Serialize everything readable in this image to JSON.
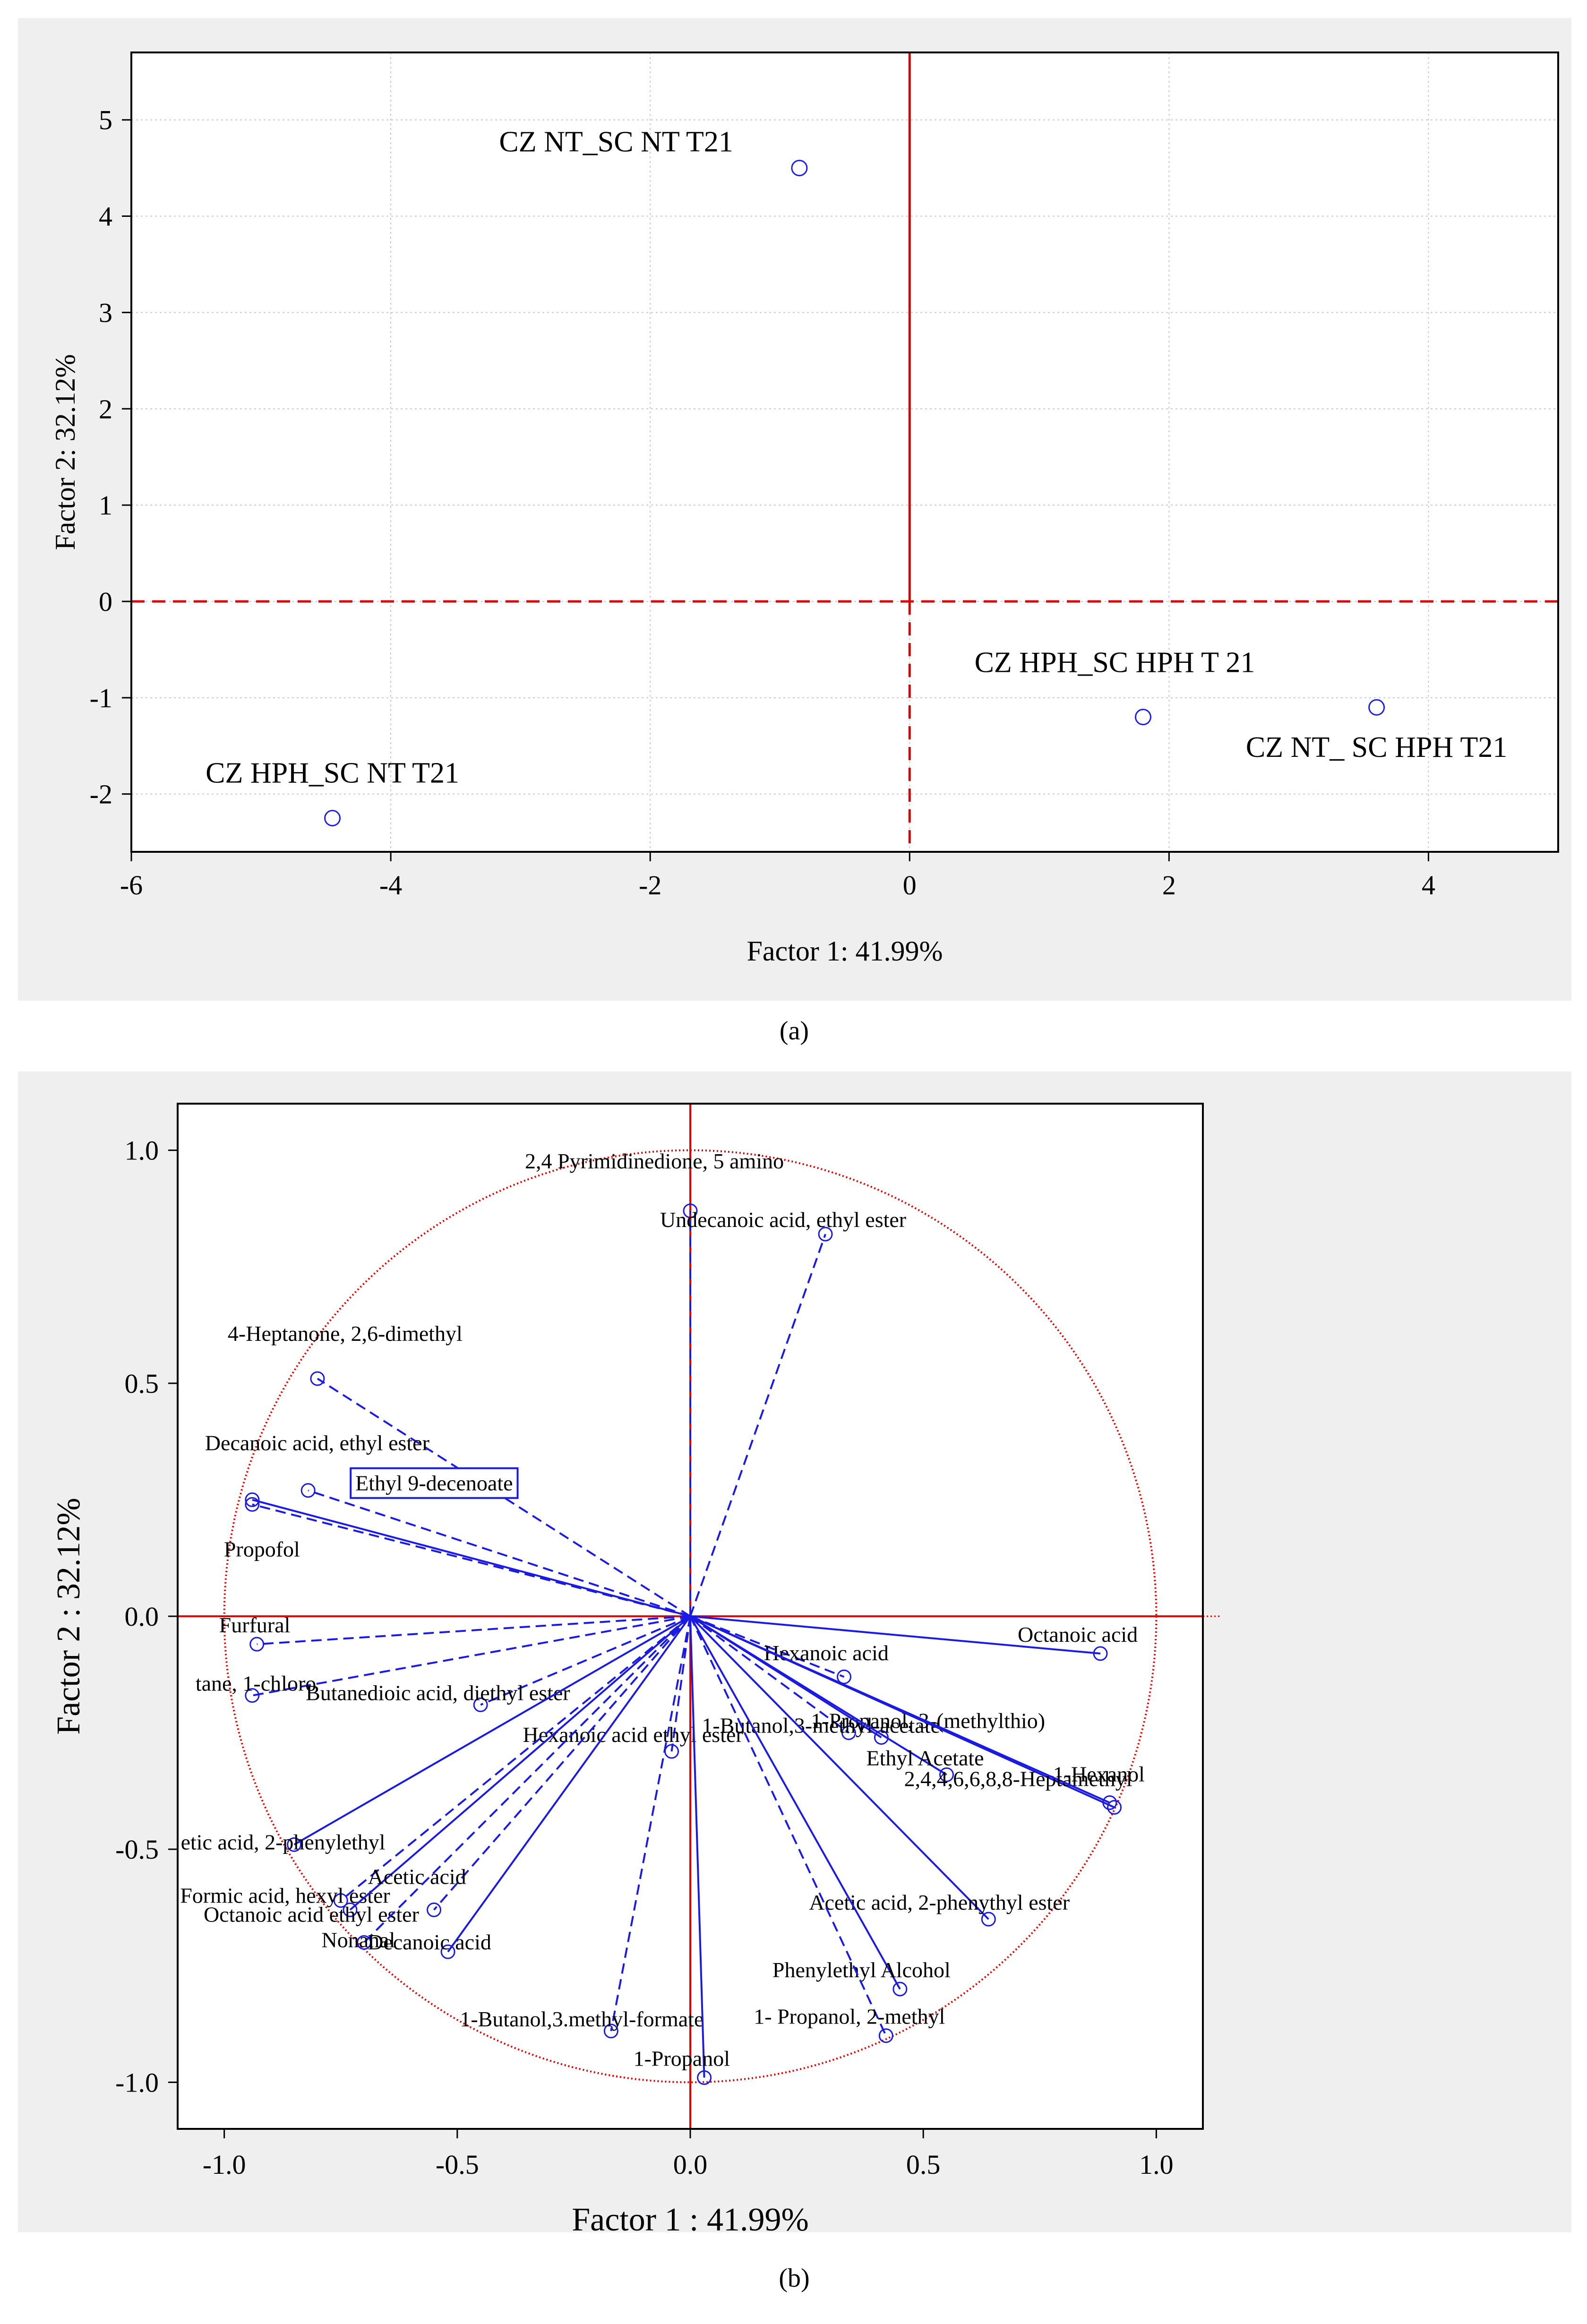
{
  "chart_data": [
    {
      "type": "scatter",
      "caption": "(a)",
      "xlabel": "Factor 1: 41.99%",
      "ylabel": "Factor 2: 32.12%",
      "xlim": [
        -6,
        5
      ],
      "ylim": [
        -2.6,
        5.7
      ],
      "xticks": [
        -6,
        -4,
        -2,
        0,
        2,
        4
      ],
      "yticks": [
        -2,
        -1,
        0,
        1,
        2,
        3,
        4,
        5
      ],
      "xtick_labels": [
        "-6",
        "-4",
        "-2",
        "0",
        "2",
        "4"
      ],
      "ytick_labels": [
        "-2",
        "-1",
        "0",
        "1",
        "2",
        "3",
        "4",
        "5"
      ],
      "grid": true,
      "points": [
        {
          "label": "CZ NT_SC NT T21",
          "x": -0.85,
          "y": 4.5
        },
        {
          "label": "CZ HPH_SC HPH T 21",
          "x": 1.8,
          "y": -1.2
        },
        {
          "label": "CZ NT_ SC HPH T21",
          "x": 3.6,
          "y": -1.1
        },
        {
          "label": "CZ HPH_SC NT T21",
          "x": -4.45,
          "y": -2.25
        }
      ]
    },
    {
      "type": "scatter",
      "caption": "(b)",
      "xlabel": "Factor 1 : 41.99%",
      "ylabel": "Factor 2 : 32.12%",
      "xlim": [
        -1.1,
        1.1
      ],
      "ylim": [
        -1.1,
        1.1
      ],
      "xticks": [
        -1.0,
        -0.5,
        0.0,
        0.5,
        1.0
      ],
      "yticks": [
        -1.0,
        -0.5,
        0.0,
        0.5,
        1.0
      ],
      "xtick_labels": [
        "-1.0",
        "-0.5",
        "0.0",
        "0.5",
        "1.0"
      ],
      "ytick_labels": [
        "-1.0",
        "-0.5",
        "0.0",
        "0.5",
        "1.0"
      ],
      "circle_radius": 1.0,
      "vectors": [
        {
          "label": "2,4 Pyrimidinedione, 5 amino",
          "x": 0.0,
          "y": 0.87,
          "dashed": true
        },
        {
          "label": "Undecanoic acid, ethyl ester",
          "x": 0.29,
          "y": 0.82,
          "dashed": true
        },
        {
          "label": "4-Heptanone, 2,6-dimethyl",
          "x": -0.8,
          "y": 0.51,
          "dashed": true
        },
        {
          "label": "Decanoic acid, ethyl ester",
          "x": -0.94,
          "y": 0.25,
          "dashed": false
        },
        {
          "label": "Ethyl 9-decenoate",
          "x": -0.82,
          "y": 0.27,
          "dashed": true
        },
        {
          "label": "Propofol",
          "x": -0.94,
          "y": 0.24,
          "dashed": true
        },
        {
          "label": "Octanoic acid",
          "x": 0.88,
          "y": -0.08,
          "dashed": false
        },
        {
          "label": "Furfural",
          "x": -0.93,
          "y": -0.06,
          "dashed": true
        },
        {
          "label": "Hexanoic acid",
          "x": 0.33,
          "y": -0.13,
          "dashed": true
        },
        {
          "label": "tane, 1-chloro",
          "x": -0.94,
          "y": -0.17,
          "dashed": true
        },
        {
          "label": "Butanedioic acid, diethyl ester",
          "x": -0.45,
          "y": -0.19,
          "dashed": true
        },
        {
          "label": "1-Propanol, 3-(methylthio)",
          "x": 0.34,
          "y": -0.25,
          "dashed": true
        },
        {
          "label": "1-Butanol,3-methyl-acetate",
          "x": 0.41,
          "y": -0.26,
          "dashed": false
        },
        {
          "label": "Hexanoic acid ethyl ester",
          "x": -0.04,
          "y": -0.29,
          "dashed": true
        },
        {
          "label": "Ethyl Acetate",
          "x": 0.55,
          "y": -0.34,
          "dashed": false
        },
        {
          "label": "2,4,4,6,6,8,8-Heptamethyl",
          "x": 0.91,
          "y": -0.41,
          "dashed": false
        },
        {
          "label": "1-Hexanol",
          "x": 0.9,
          "y": -0.4,
          "dashed": false
        },
        {
          "label": "etic acid, 2-phenylethyl",
          "x": -0.85,
          "y": -0.49,
          "dashed": false
        },
        {
          "label": "Formic acid, hexyl ester",
          "x": -0.75,
          "y": -0.61,
          "dashed": true
        },
        {
          "label": "Octanoic acid ethyl ester",
          "x": -0.73,
          "y": -0.63,
          "dashed": false
        },
        {
          "label": "Acetic acid",
          "x": -0.55,
          "y": -0.63,
          "dashed": true
        },
        {
          "label": "Nonanal",
          "x": -0.7,
          "y": -0.7,
          "dashed": true
        },
        {
          "label": "Decanoic acid",
          "x": -0.52,
          "y": -0.72,
          "dashed": false
        },
        {
          "label": "Acetic acid, 2-phenythyl ester",
          "x": 0.64,
          "y": -0.65,
          "dashed": false
        },
        {
          "label": "Phenylethyl Alcohol",
          "x": 0.45,
          "y": -0.8,
          "dashed": false
        },
        {
          "label": "1-Butanol,3.methyl-formate",
          "x": -0.17,
          "y": -0.89,
          "dashed": true
        },
        {
          "label": "1- Propanol, 2-methyl",
          "x": 0.42,
          "y": -0.9,
          "dashed": true
        },
        {
          "label": "1-Propanol",
          "x": 0.03,
          "y": -0.99,
          "dashed": false
        }
      ]
    }
  ]
}
